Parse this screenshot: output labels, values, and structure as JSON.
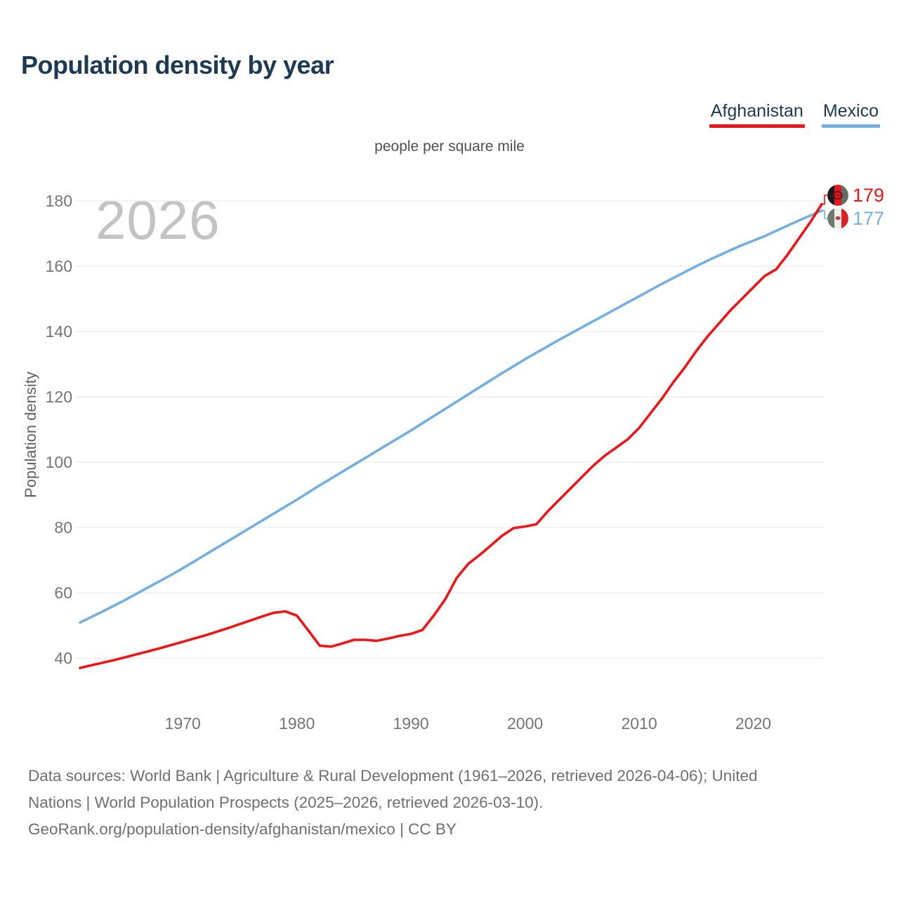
{
  "title": "Population density by year",
  "subtitle": "people per square mile",
  "watermark": "2026",
  "y_axis_title": "Population density",
  "colors": {
    "afghanistan": "#ed1515",
    "mexico": "#74afe3",
    "title_text": "#1d3a55",
    "grid": "#e9e9e9",
    "watermark": "#c3c3c3",
    "tick_text": "#757575"
  },
  "legend": {
    "items": [
      {
        "label": "Afghanistan",
        "color": "#ed1515"
      },
      {
        "label": "Mexico",
        "color": "#74afe3"
      }
    ]
  },
  "end_labels": [
    {
      "series": "Afghanistan",
      "value": "179",
      "flag": "afghanistan-flag"
    },
    {
      "series": "Mexico",
      "value": "177",
      "flag": "mexico-flag"
    }
  ],
  "footer": {
    "lines": [
      "Data sources: World Bank | Agriculture & Rural Development (1961–2026, retrieved 2026-04-06); United",
      "Nations | World Population Prospects (2025–2026, retrieved 2026-03-10).",
      "GeoRank.org/population-density/afghanistan/mexico | CC BY"
    ]
  },
  "chart_data": {
    "type": "line",
    "title": "Population density by year",
    "unit": "people per square mile",
    "xlabel": "",
    "ylabel": "Population density",
    "grid": true,
    "legend_position": "top-right",
    "ylim": [
      33,
      186
    ],
    "yticks": [
      40,
      60,
      80,
      100,
      120,
      140,
      160,
      180
    ],
    "xticks": [
      1970,
      1980,
      1990,
      2000,
      2010,
      2020
    ],
    "x": [
      1961,
      1962,
      1963,
      1964,
      1965,
      1966,
      1967,
      1968,
      1969,
      1970,
      1971,
      1972,
      1973,
      1974,
      1975,
      1976,
      1977,
      1978,
      1979,
      1980,
      1981,
      1982,
      1983,
      1984,
      1985,
      1986,
      1987,
      1988,
      1989,
      1990,
      1991,
      1992,
      1993,
      1994,
      1995,
      1996,
      1997,
      1998,
      1999,
      2000,
      2001,
      2002,
      2003,
      2004,
      2005,
      2006,
      2007,
      2008,
      2009,
      2010,
      2011,
      2012,
      2013,
      2014,
      2015,
      2016,
      2017,
      2018,
      2019,
      2020,
      2021,
      2022,
      2023,
      2024,
      2025,
      2026
    ],
    "series": [
      {
        "name": "Afghanistan",
        "color": "#ed1515",
        "end_label": 179,
        "values": [
          37.0,
          37.8,
          38.6,
          39.4,
          40.3,
          41.2,
          42.1,
          43.0,
          44.0,
          45.0,
          46.0,
          47.0,
          48.1,
          49.2,
          50.4,
          51.6,
          52.8,
          53.9,
          54.3,
          53.0,
          48.5,
          43.8,
          43.5,
          44.5,
          45.6,
          45.6,
          45.3,
          46.0,
          46.8,
          47.4,
          48.6,
          53.0,
          58.0,
          64.5,
          68.8,
          71.5,
          74.5,
          77.5,
          79.8,
          80.3,
          81.0,
          85.0,
          88.5,
          92.0,
          95.5,
          99.0,
          102.0,
          104.5,
          107.0,
          110.5,
          115.0,
          119.5,
          124.5,
          129.0,
          134.0,
          138.5,
          142.5,
          146.5,
          150.0,
          153.5,
          157.0,
          159.0,
          163.5,
          168.5,
          173.5,
          179.0
        ]
      },
      {
        "name": "Mexico",
        "color": "#74afe3",
        "end_label": 177,
        "values": [
          50.9,
          52.6,
          54.3,
          56.1,
          57.9,
          59.8,
          61.7,
          63.6,
          65.5,
          67.5,
          69.6,
          71.7,
          73.8,
          75.9,
          78.0,
          80.1,
          82.2,
          84.3,
          86.4,
          88.5,
          90.7,
          92.9,
          95.0,
          97.1,
          99.2,
          101.3,
          103.4,
          105.5,
          107.6,
          109.7,
          111.9,
          114.1,
          116.3,
          118.5,
          120.7,
          122.9,
          125.1,
          127.3,
          129.4,
          131.5,
          133.5,
          135.5,
          137.5,
          139.4,
          141.3,
          143.2,
          145.1,
          147.0,
          148.9,
          150.8,
          152.7,
          154.6,
          156.4,
          158.2,
          160.0,
          161.7,
          163.3,
          164.9,
          166.4,
          167.8,
          169.2,
          170.8,
          172.4,
          174.0,
          175.5,
          177.0
        ]
      }
    ]
  }
}
